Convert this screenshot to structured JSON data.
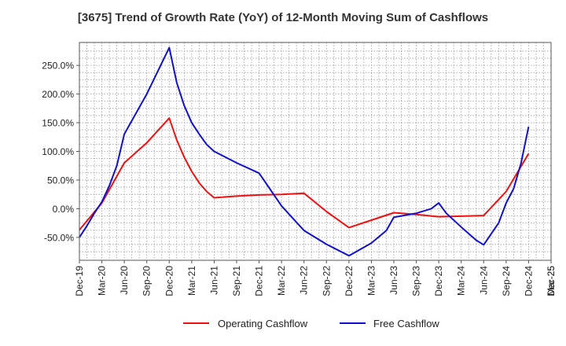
{
  "chart_data": {
    "type": "line",
    "title": "[3675]  Trend of Growth Rate (YoY) of 12-Month Moving Sum of Cashflows",
    "y_ticks": [
      "250.0%",
      "200.0%",
      "150.0%",
      "100.0%",
      "50.0%",
      "0.0%",
      "-50.0%"
    ],
    "y_tick_values": [
      250,
      200,
      150,
      100,
      50,
      0,
      -50
    ],
    "ylim": [
      -90,
      290
    ],
    "x_ticks": [
      "Dec-19",
      "Mar-20",
      "Jun-20",
      "Sep-20",
      "Dec-20",
      "Mar-21",
      "Jun-21",
      "Sep-21",
      "Dec-21",
      "Mar-22",
      "Jun-22",
      "Sep-22",
      "Dec-22",
      "Mar-23",
      "Jun-23",
      "Sep-23",
      "Dec-23",
      "Mar-24",
      "Jun-24",
      "Sep-24",
      "Dec-24",
      "Mar-25",
      "Dec-25"
    ],
    "x_tick_indices": [
      0,
      3,
      6,
      9,
      12,
      15,
      18,
      21,
      24,
      27,
      30,
      33,
      36,
      39,
      42,
      45,
      48,
      51,
      54,
      57,
      60,
      63,
      66
    ],
    "xlim": [
      0,
      63
    ],
    "grid": true,
    "legend_position": "bottom",
    "series": [
      {
        "name": "Operating Cashflow",
        "color": "#ee1111",
        "x": [
          0,
          3,
          6,
          9,
          12,
          13,
          14,
          15,
          16,
          17,
          18,
          21,
          24,
          27,
          30,
          33,
          36,
          39,
          42,
          45,
          48,
          51,
          54,
          57,
          60
        ],
        "values": [
          -37,
          10,
          80,
          115,
          158,
          120,
          90,
          65,
          45,
          30,
          19,
          22,
          24,
          25,
          27,
          -5,
          -33,
          -20,
          -7,
          -10,
          -14,
          -13,
          -12,
          30,
          96
        ]
      },
      {
        "name": "Free Cashflow",
        "color": "#1111cc",
        "x": [
          0,
          1,
          2,
          3,
          4,
          5,
          6,
          9,
          12,
          13,
          14,
          15,
          16,
          17,
          18,
          21,
          24,
          27,
          30,
          33,
          36,
          39,
          41,
          42,
          45,
          47,
          48,
          49,
          51,
          53,
          54,
          56,
          57,
          58,
          59,
          60
        ],
        "values": [
          -50,
          -30,
          -8,
          12,
          40,
          75,
          130,
          200,
          281,
          220,
          180,
          150,
          130,
          112,
          100,
          80,
          62,
          5,
          -38,
          -62,
          -82,
          -60,
          -38,
          -15,
          -8,
          0,
          10,
          -8,
          -32,
          -55,
          -63,
          -25,
          10,
          35,
          80,
          143
        ]
      }
    ]
  }
}
